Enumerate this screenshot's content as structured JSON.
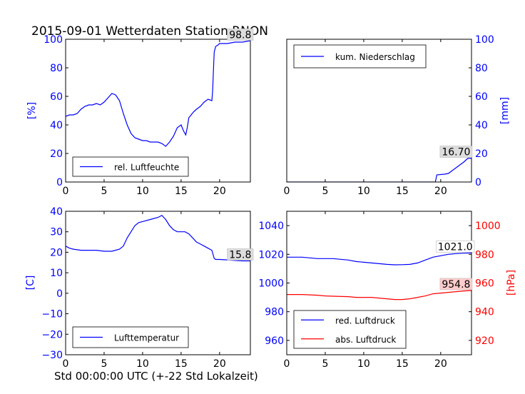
{
  "title": "2015-09-01 Wetterdaten Station RNON",
  "footer_xlabel": "Std 00:00:00 UTC (+-22 Std Lokalzeit)",
  "colors": {
    "blue": "#0000ff",
    "red": "#ff0000",
    "axis": "#000000",
    "annot_bg": "#dddddd"
  },
  "chart_data": [
    {
      "id": "humidity",
      "type": "line",
      "ylabel": "[%]",
      "yaxis_side": "left",
      "xlim": [
        0,
        24
      ],
      "ylim": [
        0,
        100
      ],
      "xticks": [
        0,
        5,
        10,
        15,
        20
      ],
      "yticks": [
        0,
        20,
        40,
        60,
        80,
        100
      ],
      "legend_position": "lower-left",
      "annotation": {
        "text": "98.8",
        "x": 23.5,
        "y": 98.8
      },
      "series": [
        {
          "name": "rel. Luftfeuchte",
          "color": "#0000ff",
          "x": [
            0,
            0.5,
            1,
            1.5,
            2,
            2.5,
            3,
            3.5,
            4,
            4.5,
            5,
            5.5,
            6,
            6.5,
            7,
            7.5,
            8,
            8.5,
            9,
            9.5,
            10,
            10.5,
            11,
            11.5,
            12,
            12.5,
            13,
            13.5,
            14,
            14.5,
            15,
            15.3,
            15.6,
            15.8,
            16,
            16.3,
            16.6,
            17,
            17.5,
            18,
            18.5,
            19,
            19.1,
            19.2,
            19.3,
            19.5,
            19.8,
            20,
            21,
            22,
            23,
            24
          ],
          "y": [
            46,
            47,
            47,
            48,
            51,
            53,
            54,
            54,
            55,
            54,
            56,
            59,
            62,
            61,
            57,
            48,
            40,
            34,
            31,
            30,
            29,
            29,
            28,
            28,
            28,
            27,
            25,
            28,
            32,
            38,
            40,
            36,
            33,
            38,
            45,
            47,
            49,
            51,
            53,
            56,
            58,
            57,
            64,
            78,
            91,
            95,
            96,
            97,
            97,
            98,
            98,
            99
          ]
        }
      ]
    },
    {
      "id": "precipitation",
      "type": "line",
      "ylabel": "[mm]",
      "yaxis_side": "right",
      "xlim": [
        0,
        24
      ],
      "ylim": [
        0,
        100
      ],
      "xticks": [
        0,
        5,
        10,
        15,
        20
      ],
      "yticks": [
        0,
        20,
        40,
        60,
        80,
        100
      ],
      "legend_position": "upper-left",
      "annotation": {
        "text": "16.70",
        "x": 22.0,
        "y": 16.7
      },
      "series": [
        {
          "name": "kum. Niederschlag",
          "color": "#0000ff",
          "x": [
            0,
            19.3,
            19.5,
            20.5,
            21,
            21.5,
            22,
            22.5,
            23,
            23.5,
            24
          ],
          "y": [
            0,
            0,
            5,
            5.5,
            6,
            8,
            10,
            12,
            14,
            16.5,
            16.7
          ]
        }
      ]
    },
    {
      "id": "temperature",
      "type": "line",
      "ylabel": "[C]",
      "yaxis_side": "left",
      "xlim": [
        0,
        24
      ],
      "ylim": [
        -30,
        40
      ],
      "xticks": [
        0,
        5,
        10,
        15,
        20
      ],
      "yticks": [
        -30,
        -20,
        -10,
        0,
        10,
        20,
        30,
        40
      ],
      "legend_position": "lower-left",
      "annotation": {
        "text": "15.8",
        "x": 23.2,
        "y": 15.8
      },
      "series": [
        {
          "name": "Lufttemperatur",
          "color": "#0000ff",
          "x": [
            0,
            0.5,
            1,
            2,
            3,
            4,
            5,
            6,
            7,
            7.5,
            8,
            8.5,
            9,
            9.5,
            10,
            11,
            12,
            12.5,
            13,
            13.5,
            14,
            14.5,
            15,
            15.5,
            16,
            16.5,
            17,
            17.5,
            18,
            18.5,
            19,
            19.3,
            19.5,
            20,
            21,
            22,
            23,
            24
          ],
          "y": [
            23,
            22,
            21.5,
            21,
            21,
            21,
            20.5,
            20.5,
            21.5,
            23,
            27,
            30,
            33,
            34.5,
            35,
            36,
            37,
            38,
            36,
            33,
            31,
            30,
            30,
            30,
            29,
            27,
            25,
            24,
            23,
            22,
            21,
            17,
            16.5,
            16.5,
            16.3,
            16,
            15.8,
            15.8
          ]
        }
      ]
    },
    {
      "id": "pressure",
      "type": "line",
      "ylabel_right": "[hPa]",
      "xlim": [
        0,
        24
      ],
      "ylim_left": [
        950,
        1050
      ],
      "ylim_right": [
        910,
        1010
      ],
      "xticks": [
        0,
        5,
        10,
        15,
        20
      ],
      "yticks_left": [
        960,
        980,
        1000,
        1020,
        1040
      ],
      "yticks_right": [
        920,
        940,
        960,
        980,
        1000
      ],
      "legend_position": "lower-left",
      "annotations": [
        {
          "text": "1021.0",
          "x": 22.0,
          "y": 1021.0,
          "axis": "left",
          "bg": "#ffffff"
        },
        {
          "text": "954.8",
          "x": 22.0,
          "y": 954.8,
          "axis": "right",
          "bg": "#ffcccc"
        }
      ],
      "series": [
        {
          "name": "red. Luftdruck",
          "color": "#0000ff",
          "axis": "left",
          "x": [
            0,
            2,
            4,
            6,
            8,
            9,
            10,
            11,
            12,
            13,
            14,
            15,
            16,
            17,
            18,
            19,
            20,
            21,
            22,
            23,
            24
          ],
          "y": [
            1018,
            1018,
            1017,
            1017,
            1016,
            1015,
            1014.5,
            1014,
            1013.5,
            1013,
            1012.7,
            1012.8,
            1013,
            1014,
            1016,
            1018,
            1019,
            1020,
            1020.5,
            1020.8,
            1021
          ]
        },
        {
          "name": "abs. Luftdruck",
          "color": "#ff0000",
          "axis": "right",
          "x": [
            0,
            2,
            4,
            5,
            6,
            8,
            9,
            10,
            11,
            12,
            13,
            14,
            15,
            16,
            17,
            18,
            19,
            20,
            21,
            22,
            23,
            24
          ],
          "y": [
            952,
            952,
            951.5,
            951,
            950.8,
            950.5,
            950,
            950,
            950,
            949.5,
            949,
            948.5,
            948.5,
            949,
            950,
            951,
            952.5,
            953,
            953.5,
            954,
            954.5,
            954.8
          ]
        }
      ]
    }
  ]
}
